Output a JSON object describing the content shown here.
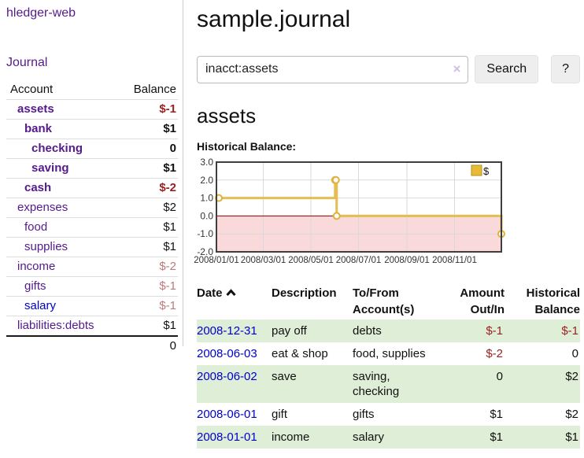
{
  "colors": {
    "link_purple": "#551a8b",
    "link_blue": "#0000cc",
    "negative_strong": "#9d2020",
    "negative_light": "#bd7a7a",
    "row_stripe_green": "#dfeed6",
    "chart_line_gold": "#e5bd52",
    "chart_negative_pink": "#f9d9d9",
    "chart_zero_line": "#8b0000"
  },
  "sidebar": {
    "brand": "hledger-web",
    "journal_link": "Journal",
    "accounts_table": {
      "headers": {
        "account": "Account",
        "balance": "Balance"
      },
      "rows": [
        {
          "name": "assets",
          "balance": "$-1"
        },
        {
          "name": "bank",
          "balance": "$1"
        },
        {
          "name": "checking",
          "balance": "0"
        },
        {
          "name": "saving",
          "balance": "$1"
        },
        {
          "name": "cash",
          "balance": "$-2"
        },
        {
          "name": "expenses",
          "balance": "$2"
        },
        {
          "name": "food",
          "balance": "$1"
        },
        {
          "name": "supplies",
          "balance": "$1"
        },
        {
          "name": "income",
          "balance": "$-2"
        },
        {
          "name": "gifts",
          "balance": "$-1"
        },
        {
          "name": "salary",
          "balance": "$-1"
        },
        {
          "name": "liabilities:debts",
          "balance": "$1"
        }
      ],
      "total": "0"
    }
  },
  "main": {
    "title": "sample.journal",
    "search": {
      "value": "inacct:assets",
      "clear_icon": "×",
      "button": "Search",
      "help_button": "?"
    },
    "account_heading": "assets",
    "chart_heading": "Historical Balance:",
    "register": {
      "headers": [
        [
          "Date",
          ""
        ],
        [
          "Description",
          ""
        ],
        [
          "To/From",
          "Account(s)"
        ],
        [
          "Amount",
          "Out/In"
        ],
        [
          "Historical",
          "Balance"
        ]
      ],
      "rows": [
        {
          "date": "2008-12-31",
          "description": "pay off",
          "accounts": "debts",
          "amount": "$-1",
          "balance": "$-1"
        },
        {
          "date": "2008-06-03",
          "description": "eat & shop",
          "accounts": "food, supplies",
          "amount": "$-2",
          "balance": "0"
        },
        {
          "date": "2008-06-02",
          "description": "save",
          "accounts": "saving, checking",
          "amount": "0",
          "balance": "$2"
        },
        {
          "date": "2008-06-01",
          "description": "gift",
          "accounts": "gifts",
          "amount": "$1",
          "balance": "$2"
        },
        {
          "date": "2008-01-01",
          "description": "income",
          "accounts": "salary",
          "amount": "$1",
          "balance": "$1"
        }
      ]
    }
  },
  "chart_data": {
    "type": "line",
    "title": "Historical Balance:",
    "step": true,
    "legend": "$",
    "legend_position": "top-right",
    "grid": true,
    "negative_region_shaded": true,
    "ylim": [
      -2,
      3
    ],
    "y_ticks": [
      "3.0",
      "2.0",
      "1.0",
      "0.0",
      "-1.0",
      "-2.0"
    ],
    "x_ticks": [
      "2008/01/01",
      "2008/03/01",
      "2008/05/01",
      "2008/07/01",
      "2008/09/01",
      "2008/11/01"
    ],
    "series": [
      {
        "name": "$",
        "points": [
          [
            "2008-01-01",
            1
          ],
          [
            "2008-06-01",
            2
          ],
          [
            "2008-06-02",
            2
          ],
          [
            "2008-06-03",
            0
          ],
          [
            "2008-12-31",
            -1
          ]
        ]
      }
    ]
  }
}
